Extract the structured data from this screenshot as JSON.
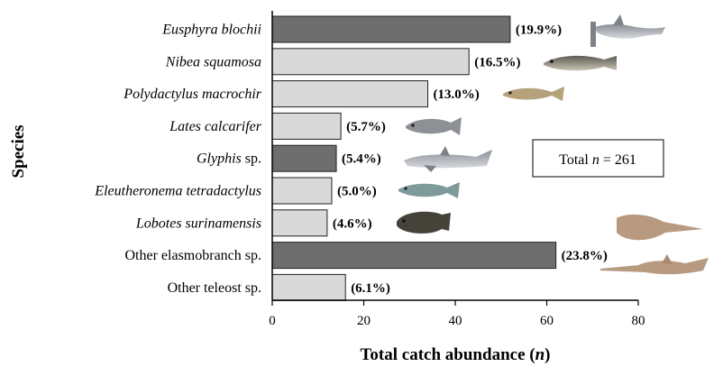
{
  "chart_data": {
    "type": "bar",
    "orientation": "horizontal",
    "xlabel": "Total catch abundance",
    "xlabel_var": "n",
    "ylabel": "Species",
    "xlim": [
      0,
      80
    ],
    "xticks": [
      0,
      20,
      40,
      60,
      80
    ],
    "grid": false,
    "categories": [
      {
        "italic": "Eusphyra blochii",
        "plain": ""
      },
      {
        "italic": "Nibea squamosa",
        "plain": ""
      },
      {
        "italic": "Polydactylus macrochir",
        "plain": ""
      },
      {
        "italic": "Lates calcarifer",
        "plain": ""
      },
      {
        "italic": "Glyphis",
        "plain": " sp."
      },
      {
        "italic": "Eleutheronema tetradactylus",
        "plain": ""
      },
      {
        "italic": "Lobotes surinamensis",
        "plain": ""
      },
      {
        "italic": "",
        "plain": "Other elasmobranch sp."
      },
      {
        "italic": "",
        "plain": "Other teleost sp."
      }
    ],
    "values": [
      52,
      43,
      34,
      15,
      14,
      13,
      12,
      62,
      16
    ],
    "labels": [
      "(19.9%)",
      "(16.5%)",
      "(13.0%)",
      "(5.7%)",
      "(5.4%)",
      "(5.0%)",
      "(4.6%)",
      "(23.8%)",
      "(6.1%)"
    ],
    "group": [
      "elasmobranch",
      "teleost",
      "teleost",
      "teleost",
      "elasmobranch",
      "teleost",
      "teleost",
      "elasmobranch",
      "teleost"
    ],
    "colors": {
      "elasmobranch": "#6e6e6e",
      "teleost": "#d9d9d9",
      "outline": "#222222"
    },
    "annotation": {
      "prefix": "Total ",
      "var": "n",
      "suffix": " = 261"
    },
    "icons": [
      "hammerhead-shark-icon",
      "croaker-fish-icon",
      "threadfin-fish-icon",
      "barramundi-fish-icon",
      "river-shark-icon",
      "threadfin-salmon-icon",
      "tripletail-fish-icon",
      "guitarfish-icon",
      "sawfish-icon"
    ]
  }
}
